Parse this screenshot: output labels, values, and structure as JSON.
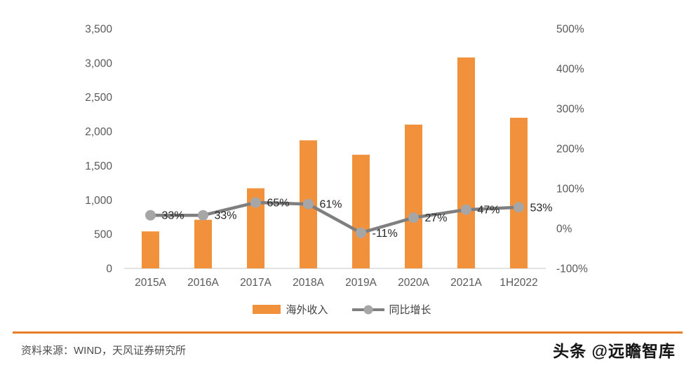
{
  "chart_data": {
    "type": "bar",
    "combo": "bar+line",
    "title": "",
    "categories": [
      "2015A",
      "2016A",
      "2017A",
      "2018A",
      "2019A",
      "2020A",
      "2021A",
      "1H2022"
    ],
    "series": [
      {
        "name": "海外收入",
        "type": "bar",
        "axis": "left",
        "values": [
          540,
          710,
          1170,
          1870,
          1660,
          2100,
          3080,
          2200
        ],
        "color": "#F2913C"
      },
      {
        "name": "同比增长",
        "type": "line",
        "axis": "right",
        "values": [
          33,
          33,
          65,
          61,
          -11,
          27,
          47,
          53
        ],
        "point_labels": [
          "33%",
          "33%",
          "65%",
          "61%",
          "-11%",
          "27%",
          "47%",
          "53%"
        ],
        "color": "#7F7F7F",
        "marker_color": "#A6A6A6"
      }
    ],
    "left_axis": {
      "min": 0,
      "max": 3500,
      "step": 500,
      "tick_labels": [
        "3,500",
        "3,000",
        "2,500",
        "2,000",
        "1,500",
        "1,000",
        "500",
        "0"
      ]
    },
    "right_axis": {
      "min": -100,
      "max": 500,
      "step": 100,
      "tick_labels": [
        "500%",
        "400%",
        "300%",
        "200%",
        "100%",
        "0%",
        "-100%"
      ]
    },
    "grid": false,
    "legend_position": "bottom"
  },
  "legend": {
    "bar_label": "海外收入",
    "line_label": "同比增长"
  },
  "footer": {
    "source": "资料来源：WIND，天风证券研究所",
    "watermark": "头条 @远瞻智库"
  },
  "colors": {
    "bar_orange": "#F2913C",
    "line_gray": "#7F7F7F",
    "marker_gray": "#A6A6A6",
    "axis_text": "#595959",
    "baseline": "#D9D9D9",
    "footer_rule_orange": "#E87E2A"
  }
}
